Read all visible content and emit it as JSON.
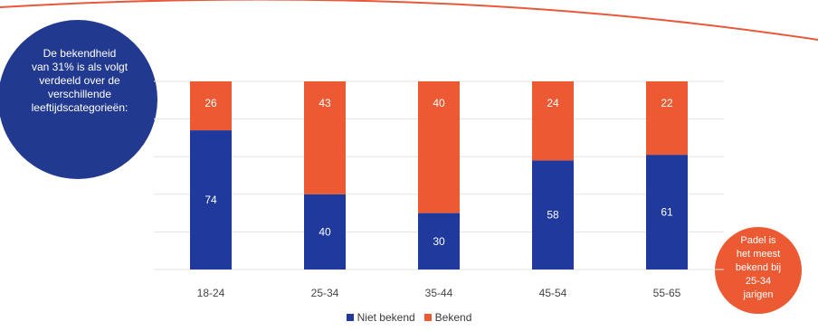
{
  "left_bubble": {
    "lines": [
      "De bekendheid",
      "van 31% is als volgt",
      "verdeeld over de",
      "verschillende",
      "leeftijdscategorieën:"
    ]
  },
  "right_bubble": {
    "lines": [
      "Padel is",
      "het meest",
      "bekend bij",
      "25-34",
      "jarigen"
    ]
  },
  "colors": {
    "niet_bekend": "#1f3a9c",
    "bekend": "#ec5a33",
    "bubble_blue": "#213a8f",
    "bubble_orange": "#ec5a33",
    "arc": "#e8583a",
    "grid": "#e3e3e3",
    "tick_text": "#444444"
  },
  "chart_data": {
    "type": "bar",
    "stacked": true,
    "categories": [
      "18-24",
      "25-34",
      "35-44",
      "45-54",
      "55-65"
    ],
    "series": [
      {
        "name": "Niet bekend",
        "values": [
          74,
          40,
          30,
          58,
          61
        ]
      },
      {
        "name": "Bekend",
        "values": [
          26,
          43,
          40,
          24,
          22
        ]
      }
    ],
    "ylim": [
      0,
      100
    ],
    "grid": true,
    "legend_position": "bottom"
  }
}
